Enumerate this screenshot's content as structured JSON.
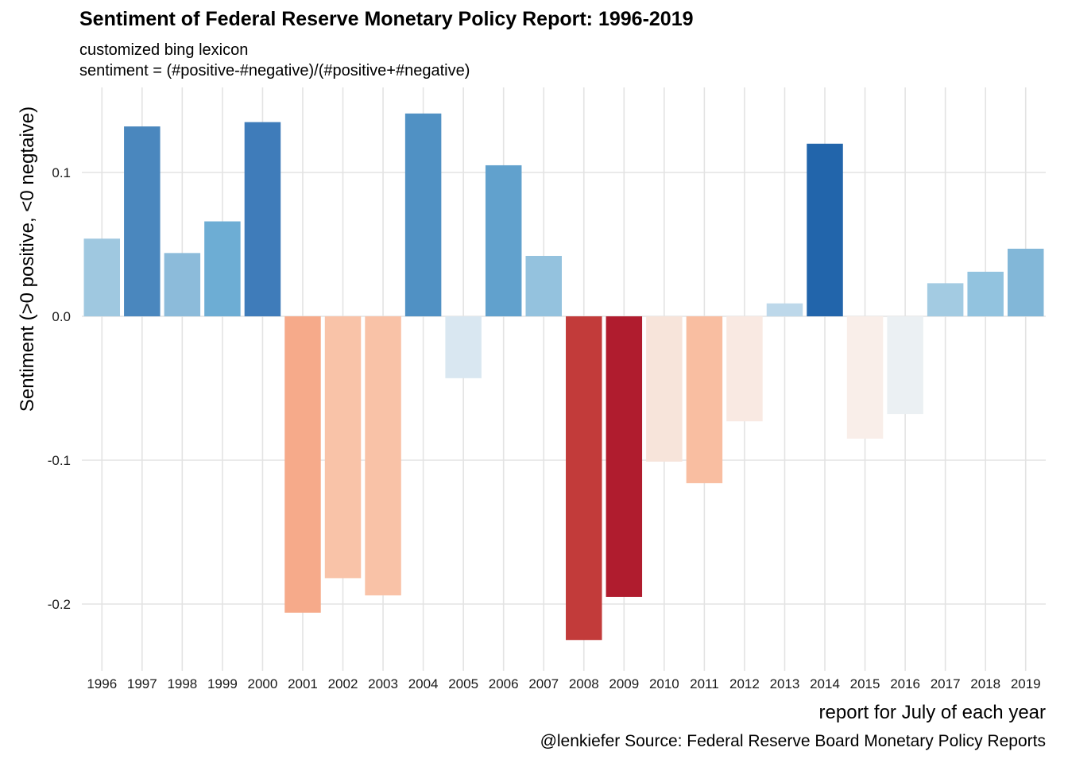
{
  "title": "Sentiment of Federal Reserve Monetary Policy Report: 1996-2019",
  "subtitle_line1": "customized bing lexicon",
  "subtitle_line2": "sentiment = (#positive-#negative)/(#positive+#negative)",
  "caption": "@lenkiefer Source: Federal Reserve Board Monetary Policy Reports",
  "chart_data": {
    "type": "bar",
    "title": "Sentiment of Federal Reserve Monetary Policy Report: 1996-2019",
    "xlabel": "report for July of each year",
    "ylabel": "Sentiment (>0 positive, <0 negtaive)",
    "ylim": [
      -0.245,
      0.16
    ],
    "yticks": [
      -0.2,
      -0.1,
      0.0,
      0.1
    ],
    "ytick_labels": [
      "-0.2",
      "-0.1",
      "0.0",
      "0.1"
    ],
    "grid": true,
    "legend": "none",
    "categories": [
      "1996",
      "1997",
      "1998",
      "1999",
      "2000",
      "2001",
      "2002",
      "2003",
      "2004",
      "2005",
      "2006",
      "2007",
      "2008",
      "2009",
      "2010",
      "2011",
      "2012",
      "2013",
      "2014",
      "2015",
      "2016",
      "2017",
      "2018",
      "2019"
    ],
    "values": [
      0.054,
      0.132,
      0.044,
      0.066,
      0.135,
      -0.206,
      -0.182,
      -0.194,
      0.141,
      -0.043,
      0.105,
      0.042,
      -0.225,
      -0.195,
      -0.101,
      -0.116,
      -0.073,
      0.009,
      0.12,
      -0.085,
      -0.068,
      0.023,
      0.031,
      0.047
    ],
    "colors": [
      "#9fc8e0",
      "#4a87be",
      "#8cbbda",
      "#6dadd4",
      "#3f7cba",
      "#f6aa8a",
      "#f9c3a8",
      "#f9c2a7",
      "#5091c4",
      "#d9e7f1",
      "#61a1cd",
      "#94c2de",
      "#c23b3a",
      "#b01c2e",
      "#f7e4da",
      "#f9bea1",
      "#f9e9e2",
      "#bdd8ea",
      "#2265ab",
      "#f9eee9",
      "#ebf0f3",
      "#a3cbe2",
      "#92c3df",
      "#82b7d8"
    ]
  }
}
